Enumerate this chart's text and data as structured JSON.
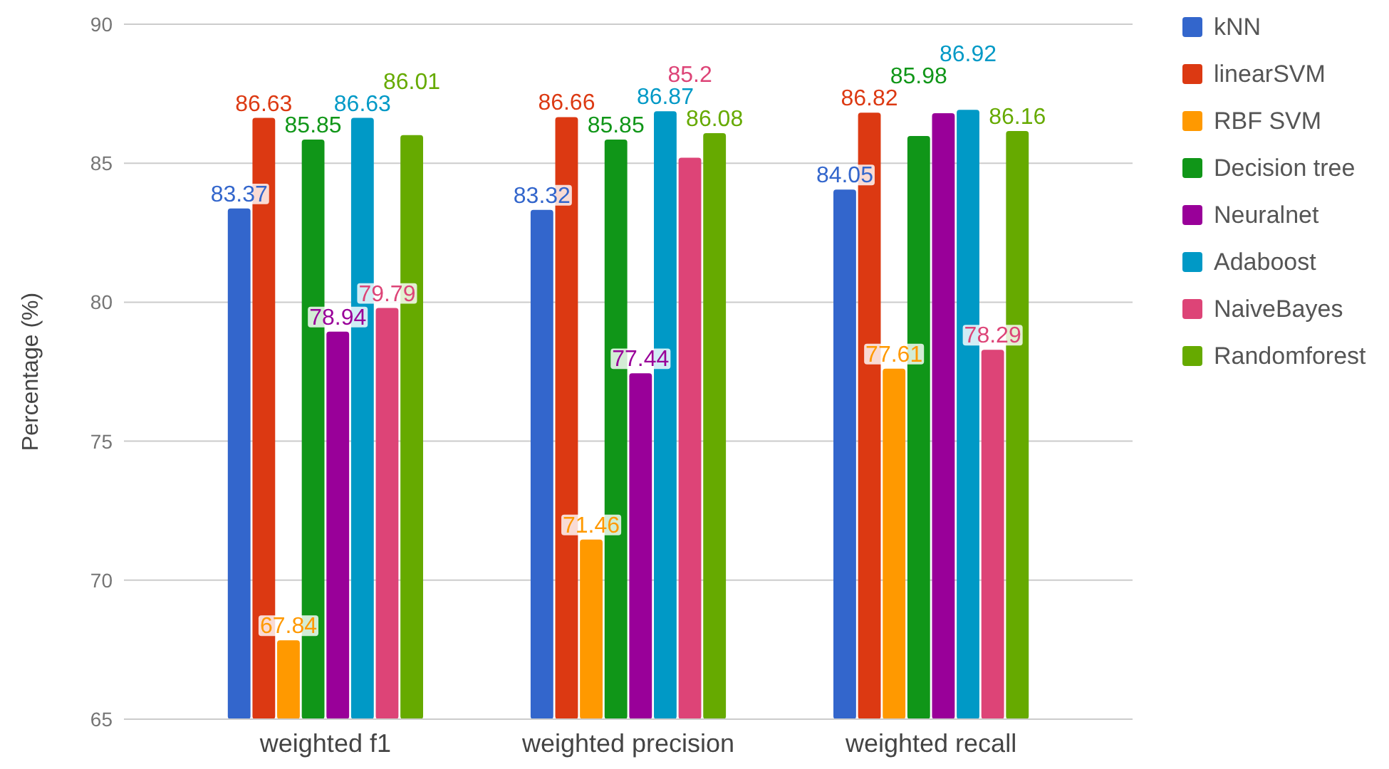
{
  "chart_data": {
    "type": "bar",
    "ylabel": "Percentage (%)",
    "categories": [
      "weighted f1",
      "weighted precision",
      "weighted recall"
    ],
    "series": [
      {
        "name": "kNN",
        "color": "#3366cc",
        "values": [
          83.37,
          83.32,
          84.05
        ],
        "value_labels": [
          "83.37",
          "83.32",
          "84.05"
        ]
      },
      {
        "name": "linearSVM",
        "color": "#dc3912",
        "values": [
          86.63,
          86.66,
          86.82
        ],
        "value_labels": [
          "86.63",
          "86.66",
          "86.82"
        ]
      },
      {
        "name": "RBF SVM",
        "color": "#ff9900",
        "values": [
          67.84,
          71.46,
          77.61
        ],
        "value_labels": [
          "67.84",
          "71.46",
          "77.61"
        ]
      },
      {
        "name": "Decision tree",
        "color": "#109618",
        "values": [
          85.85,
          85.85,
          85.98
        ],
        "value_labels": [
          "85.85",
          "85.85",
          "85.98"
        ]
      },
      {
        "name": "Neuralnet",
        "color": "#990099",
        "values": [
          78.94,
          77.44,
          86.8
        ],
        "value_labels": [
          "78.94",
          "77.44",
          null
        ]
      },
      {
        "name": "Adaboost",
        "color": "#0099c6",
        "values": [
          86.63,
          86.87,
          86.92
        ],
        "value_labels": [
          "86.63",
          "86.87",
          "86.92"
        ]
      },
      {
        "name": "NaiveBayes",
        "color": "#dd4477",
        "values": [
          79.79,
          85.2,
          78.29
        ],
        "value_labels": [
          "79.79",
          "85.2",
          "78.29"
        ]
      },
      {
        "name": "Randomforest",
        "color": "#66aa00",
        "values": [
          86.01,
          86.08,
          86.16
        ],
        "value_labels": [
          "86.01",
          "86.08",
          "86.16"
        ]
      }
    ],
    "ylim": [
      65,
      90
    ],
    "yticks": [
      65,
      70,
      75,
      80,
      85,
      90
    ],
    "grid": "y",
    "legend": "right"
  }
}
